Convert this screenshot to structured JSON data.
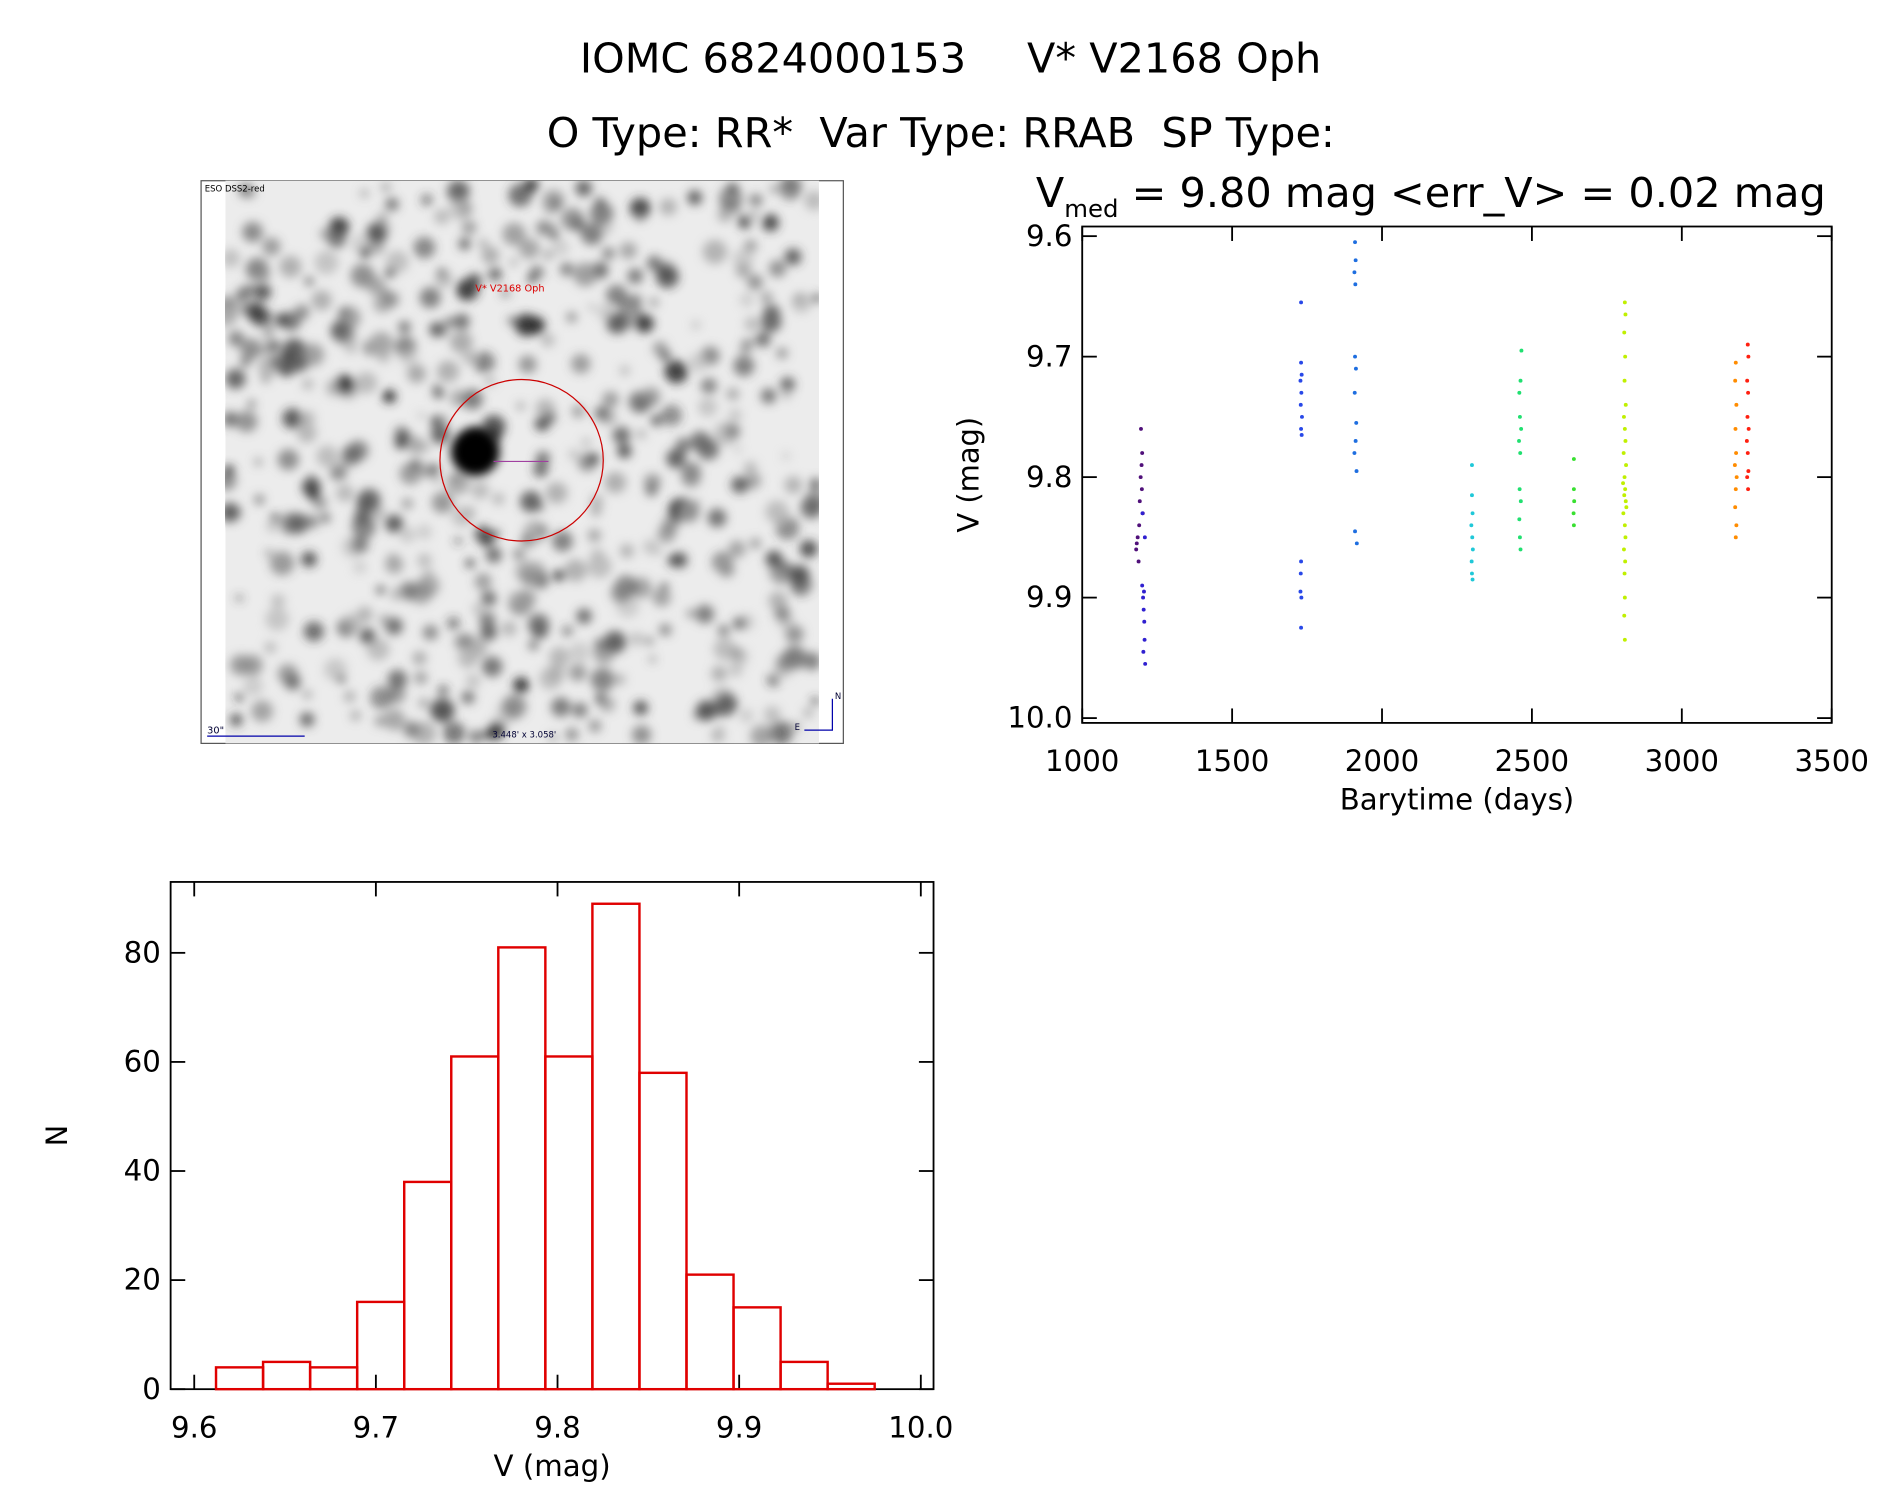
{
  "header": {
    "id": "IOMC 6824000153",
    "name": "V* V2168 Oph",
    "types": "O Type: RR*  Var Type: RRAB  SP Type:"
  },
  "image": {
    "survey": "ESO DSS2-red",
    "target": "V* V2168 Oph",
    "scale": "30\"",
    "size": "3.448' x 3.058'",
    "north": "N",
    "east": "E"
  },
  "chart_data": [
    {
      "type": "scatter",
      "title": {
        "main": "V",
        "sub": "med",
        "rest": " = 9.80 mag <err_V> = 0.02 mag"
      },
      "x_label": "Barytime (days)",
      "y_label": "V (mag)",
      "xlim": [
        1000,
        3500
      ],
      "ylim": [
        9.592,
        10.004
      ],
      "y_inverted": true,
      "xticks": [
        1000,
        1500,
        2000,
        2500,
        3000,
        3500
      ],
      "yticks": [
        9.6,
        9.7,
        9.8,
        9.9,
        {
          "value": 10,
          "label": "10.0"
        }
      ],
      "series": [
        {
          "color": "#50107a",
          "x": [
            1180,
            1185,
            1190,
            1192,
            1195,
            1198,
            1200,
            1202,
            1188,
            1196,
            1182,
            1199
          ],
          "values": [
            9.86,
            9.85,
            9.84,
            9.82,
            9.8,
            9.79,
            9.78,
            9.83,
            9.87,
            9.76,
            9.855,
            9.81
          ]
        },
        {
          "color": "#3020d0",
          "x": [
            1200,
            1203,
            1205,
            1207,
            1208,
            1210,
            1204,
            1206,
            1201,
            1209
          ],
          "values": [
            9.89,
            9.9,
            9.91,
            9.92,
            9.935,
            9.955,
            9.945,
            9.895,
            9.83,
            9.85
          ]
        },
        {
          "color": "#2848e8",
          "x": [
            1730,
            1730,
            1732,
            1728,
            1731,
            1729,
            1733,
            1730,
            1732,
            1730,
            1729,
            1731,
            1730,
            1728
          ],
          "values": [
            9.655,
            9.705,
            9.715,
            9.72,
            9.73,
            9.74,
            9.75,
            9.76,
            9.765,
            9.87,
            9.88,
            9.9,
            9.925,
            9.895
          ]
        },
        {
          "color": "#1e6ee0",
          "x": [
            1910,
            1912,
            1908,
            1911,
            1910,
            1913,
            1909,
            1914,
            1912,
            1908,
            1915,
            1910,
            1916
          ],
          "values": [
            9.605,
            9.62,
            9.63,
            9.64,
            9.7,
            9.71,
            9.73,
            9.755,
            9.77,
            9.78,
            9.795,
            9.845,
            9.855
          ]
        },
        {
          "color": "#20c8d8",
          "x": [
            2300,
            2300,
            2302,
            2298,
            2301,
            2303,
            2299,
            2300,
            2302
          ],
          "values": [
            9.79,
            9.815,
            9.83,
            9.84,
            9.85,
            9.86,
            9.87,
            9.88,
            9.885
          ]
        },
        {
          "color": "#20e070",
          "x": [
            2465,
            2462,
            2458,
            2460,
            2464,
            2457,
            2461,
            2459,
            2463,
            2458,
            2460,
            2462
          ],
          "values": [
            9.695,
            9.72,
            9.73,
            9.75,
            9.76,
            9.77,
            9.78,
            9.81,
            9.82,
            9.835,
            9.85,
            9.86
          ]
        },
        {
          "color": "#38e030",
          "x": [
            2640,
            2640,
            2641,
            2639,
            2640
          ],
          "values": [
            9.785,
            9.81,
            9.82,
            9.83,
            9.84
          ]
        },
        {
          "color": "#c0f000",
          "x": [
            2810,
            2812,
            2808,
            2811,
            2809,
            2813,
            2807,
            2810,
            2812,
            2806,
            2814,
            2809,
            2811,
            2808,
            2813,
            2805,
            2810,
            2812,
            2807,
            2811,
            2809,
            2810,
            2808,
            2810,
            2815,
            2804
          ],
          "values": [
            9.655,
            9.665,
            9.68,
            9.7,
            9.72,
            9.74,
            9.75,
            9.76,
            9.77,
            9.78,
            9.79,
            9.8,
            9.81,
            9.815,
            9.82,
            9.83,
            9.84,
            9.85,
            9.86,
            9.87,
            9.88,
            9.9,
            9.915,
            9.935,
            9.825,
            9.805
          ]
        },
        {
          "color": "#ff8c00",
          "x": [
            3180,
            3178,
            3182,
            3179,
            3181,
            3177,
            3183,
            3180,
            3178,
            3182,
            3180
          ],
          "values": [
            9.705,
            9.72,
            9.74,
            9.76,
            9.78,
            9.79,
            9.8,
            9.81,
            9.825,
            9.84,
            9.85
          ]
        },
        {
          "color": "#ff2010",
          "x": [
            3220,
            3222,
            3218,
            3221,
            3219,
            3223,
            3217,
            3220,
            3222,
            3218,
            3221
          ],
          "values": [
            9.69,
            9.7,
            9.72,
            9.73,
            9.75,
            9.76,
            9.77,
            9.78,
            9.795,
            9.8,
            9.81
          ]
        }
      ]
    },
    {
      "type": "histogram",
      "x_label": "V (mag)",
      "y_label": "N",
      "color": "#e00000",
      "bins": [
        9.612,
        9.6379,
        9.6638,
        9.6897,
        9.7156,
        9.7415,
        9.7674,
        9.7933,
        9.8192,
        9.8451,
        9.871,
        9.8969,
        9.9228,
        9.9487,
        9.9746
      ],
      "values": [
        4,
        5,
        4,
        16,
        38,
        61,
        81,
        61,
        89,
        58,
        21,
        15,
        5,
        1
      ],
      "xlim": [
        9.587,
        10.007
      ],
      "ylim": [
        0,
        93
      ],
      "xticks": [
        9.6,
        9.7,
        9.8,
        9.9,
        {
          "value": 10,
          "label": "10.0"
        }
      ],
      "yticks": [
        0,
        20,
        40,
        60,
        80
      ]
    }
  ]
}
